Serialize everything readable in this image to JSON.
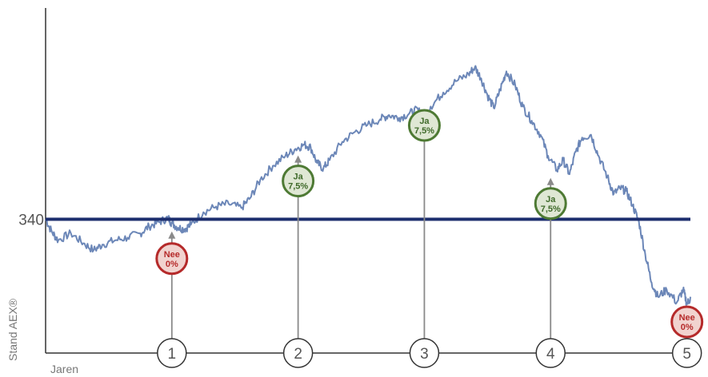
{
  "chart_data": {
    "type": "line",
    "title": "",
    "xlabel": "Jaren",
    "ylabel": "Stand AEX®",
    "ylim": [
      245,
      490
    ],
    "xlim": [
      0,
      5.12
    ],
    "threshold": {
      "value": 340,
      "label": "340"
    },
    "series": [
      {
        "values": [
          [
            0.0,
            340
          ],
          [
            0.05,
            331
          ],
          [
            0.1,
            325
          ],
          [
            0.2,
            330
          ],
          [
            0.3,
            323
          ],
          [
            0.38,
            318
          ],
          [
            0.45,
            322
          ],
          [
            0.55,
            325
          ],
          [
            0.65,
            327
          ],
          [
            0.75,
            330
          ],
          [
            0.82,
            335
          ],
          [
            0.9,
            338
          ],
          [
            0.97,
            341
          ],
          [
            1.0,
            337
          ],
          [
            1.05,
            334
          ],
          [
            1.1,
            333
          ],
          [
            1.15,
            336
          ],
          [
            1.25,
            345
          ],
          [
            1.35,
            349
          ],
          [
            1.45,
            351
          ],
          [
            1.55,
            348
          ],
          [
            1.62,
            355
          ],
          [
            1.7,
            368
          ],
          [
            1.8,
            378
          ],
          [
            1.9,
            385
          ],
          [
            1.98,
            390
          ],
          [
            2.05,
            393
          ],
          [
            2.1,
            391
          ],
          [
            2.15,
            380
          ],
          [
            2.2,
            376
          ],
          [
            2.25,
            382
          ],
          [
            2.35,
            395
          ],
          [
            2.45,
            402
          ],
          [
            2.55,
            407
          ],
          [
            2.65,
            411
          ],
          [
            2.72,
            414
          ],
          [
            2.8,
            412
          ],
          [
            2.88,
            415
          ],
          [
            2.95,
            418
          ],
          [
            3.0,
            410
          ],
          [
            3.05,
            420
          ],
          [
            3.15,
            430
          ],
          [
            3.25,
            438
          ],
          [
            3.35,
            443
          ],
          [
            3.4,
            448
          ],
          [
            3.45,
            440
          ],
          [
            3.5,
            428
          ],
          [
            3.55,
            419
          ],
          [
            3.6,
            432
          ],
          [
            3.65,
            445
          ],
          [
            3.72,
            435
          ],
          [
            3.78,
            420
          ],
          [
            3.85,
            410
          ],
          [
            3.92,
            400
          ],
          [
            3.98,
            385
          ],
          [
            4.05,
            375
          ],
          [
            4.1,
            382
          ],
          [
            4.15,
            372
          ],
          [
            4.2,
            388
          ],
          [
            4.25,
            398
          ],
          [
            4.32,
            400
          ],
          [
            4.38,
            385
          ],
          [
            4.45,
            370
          ],
          [
            4.5,
            358
          ],
          [
            4.55,
            362
          ],
          [
            4.6,
            360
          ],
          [
            4.65,
            350
          ],
          [
            4.7,
            338
          ],
          [
            4.75,
            315
          ],
          [
            4.8,
            295
          ],
          [
            4.85,
            285
          ],
          [
            4.92,
            290
          ],
          [
            5.0,
            281
          ],
          [
            5.05,
            290
          ],
          [
            5.08,
            280
          ],
          [
            5.11,
            284
          ]
        ]
      }
    ],
    "observations": [
      {
        "label": "1",
        "x": 1.0,
        "y": 337,
        "result": "Nee",
        "coupon": "0%",
        "status": "no"
      },
      {
        "label": "2",
        "x": 2.0,
        "y": 391,
        "result": "Ja",
        "coupon": "7,5%",
        "status": "yes"
      },
      {
        "label": "3",
        "x": 3.0,
        "y": 414,
        "result": "Ja",
        "coupon": "7,5%",
        "status": "yes"
      },
      {
        "label": "4",
        "x": 4.0,
        "y": 375,
        "result": "Ja",
        "coupon": "7,5%",
        "status": "yes"
      },
      {
        "label": "5",
        "x": 5.08,
        "y": 279,
        "result": "Nee",
        "coupon": "0%",
        "status": "no"
      }
    ],
    "grid": false,
    "colors": {
      "series": "#6c87b8",
      "threshold": "#1c2e6e",
      "axis": "#333333",
      "arrow": "#8a8a8a",
      "yes_fill": "#dfe7d4",
      "yes_stroke": "#4e7a34",
      "yes_text": "#3f6a2a",
      "no_fill": "#f1d3cf",
      "no_stroke": "#b52a2a",
      "no_text": "#b52a2a"
    }
  }
}
